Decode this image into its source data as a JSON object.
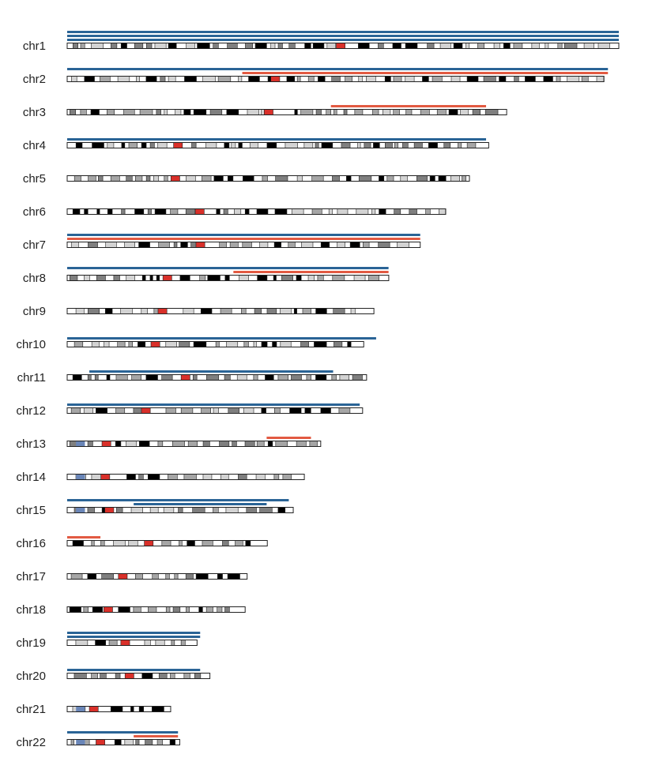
{
  "colors": {
    "gain": "#2a6496",
    "loss": "#e25a42",
    "outline": "#222222",
    "band_gneg": "#ffffff",
    "band_gpos25": "#d3d3d3",
    "band_gpos50": "#a6a6a6",
    "band_gpos75": "#7f7f7f",
    "band_gpos100": "#000000",
    "band_acen": "#d9302a",
    "band_stalk": "#6a86b8"
  },
  "chart_data": {
    "type": "karyotype",
    "chromosomes": [
      {
        "label": "chr1",
        "length": 248.9,
        "centromere": 123.4
      },
      {
        "label": "chr2",
        "length": 242.2,
        "centromere": 93.9
      },
      {
        "label": "chr3",
        "length": 198.3,
        "centromere": 90.9
      },
      {
        "label": "chr4",
        "length": 190.2,
        "centromere": 50.0
      },
      {
        "label": "chr5",
        "length": 181.5,
        "centromere": 48.8
      },
      {
        "label": "chr6",
        "length": 170.8,
        "centromere": 59.8
      },
      {
        "label": "chr7",
        "length": 159.3,
        "centromere": 60.1
      },
      {
        "label": "chr8",
        "length": 145.1,
        "centromere": 45.2
      },
      {
        "label": "chr9",
        "length": 138.4,
        "centromere": 43.0
      },
      {
        "label": "chr10",
        "length": 133.8,
        "centromere": 39.8
      },
      {
        "label": "chr11",
        "length": 135.1,
        "centromere": 53.4
      },
      {
        "label": "chr12",
        "length": 133.3,
        "centromere": 35.5
      },
      {
        "label": "chr13",
        "length": 114.4,
        "centromere": 17.7
      },
      {
        "label": "chr14",
        "length": 107.0,
        "centromere": 17.2
      },
      {
        "label": "chr15",
        "length": 102.0,
        "centromere": 19.0
      },
      {
        "label": "chr16",
        "length": 90.3,
        "centromere": 36.8
      },
      {
        "label": "chr17",
        "length": 81.2,
        "centromere": 25.1
      },
      {
        "label": "chr18",
        "length": 80.3,
        "centromere": 18.5
      },
      {
        "label": "chr19",
        "length": 58.6,
        "centromere": 26.2
      },
      {
        "label": "chr20",
        "length": 64.4,
        "centromere": 28.1
      },
      {
        "label": "chr21",
        "length": 46.7,
        "centromere": 12.0
      },
      {
        "label": "chr22",
        "length": 50.8,
        "centromere": 15.0
      }
    ],
    "segments": [
      {
        "chr": "chr1",
        "type": "gain",
        "start": 0,
        "end": 248.9
      },
      {
        "chr": "chr1",
        "type": "gain",
        "start": 0,
        "end": 248.9
      },
      {
        "chr": "chr1",
        "type": "gain",
        "start": 0,
        "end": 248.9
      },
      {
        "chr": "chr2",
        "type": "loss",
        "start": 79,
        "end": 244
      },
      {
        "chr": "chr2",
        "type": "gain",
        "start": 0,
        "end": 244
      },
      {
        "chr": "chr3",
        "type": "loss",
        "start": 119,
        "end": 189
      },
      {
        "chr": "chr4",
        "type": "gain",
        "start": 0,
        "end": 189
      },
      {
        "chr": "chr7",
        "type": "loss",
        "start": 0,
        "end": 159.3
      },
      {
        "chr": "chr7",
        "type": "gain",
        "start": 0,
        "end": 159.3
      },
      {
        "chr": "chr8",
        "type": "loss",
        "start": 75,
        "end": 145
      },
      {
        "chr": "chr8",
        "type": "gain",
        "start": 0,
        "end": 145
      },
      {
        "chr": "chr10",
        "type": "gain",
        "start": 0,
        "end": 139.4
      },
      {
        "chr": "chr11",
        "type": "gain",
        "start": 10,
        "end": 120
      },
      {
        "chr": "chr12",
        "type": "gain",
        "start": 0,
        "end": 132
      },
      {
        "chr": "chr13",
        "type": "loss",
        "start": 90,
        "end": 110
      },
      {
        "chr": "chr15",
        "type": "gain",
        "start": 30,
        "end": 90
      },
      {
        "chr": "chr15",
        "type": "gain",
        "start": 0,
        "end": 100
      },
      {
        "chr": "chr16",
        "type": "loss",
        "start": 0,
        "end": 15
      },
      {
        "chr": "chr19",
        "type": "gain",
        "start": 0,
        "end": 60
      },
      {
        "chr": "chr19",
        "type": "gain",
        "start": 0,
        "end": 60
      },
      {
        "chr": "chr20",
        "type": "gain",
        "start": 0,
        "end": 60
      },
      {
        "chr": "chr22",
        "type": "loss",
        "start": 30,
        "end": 50
      },
      {
        "chr": "chr22",
        "type": "gain",
        "start": 0,
        "end": 50
      }
    ]
  }
}
